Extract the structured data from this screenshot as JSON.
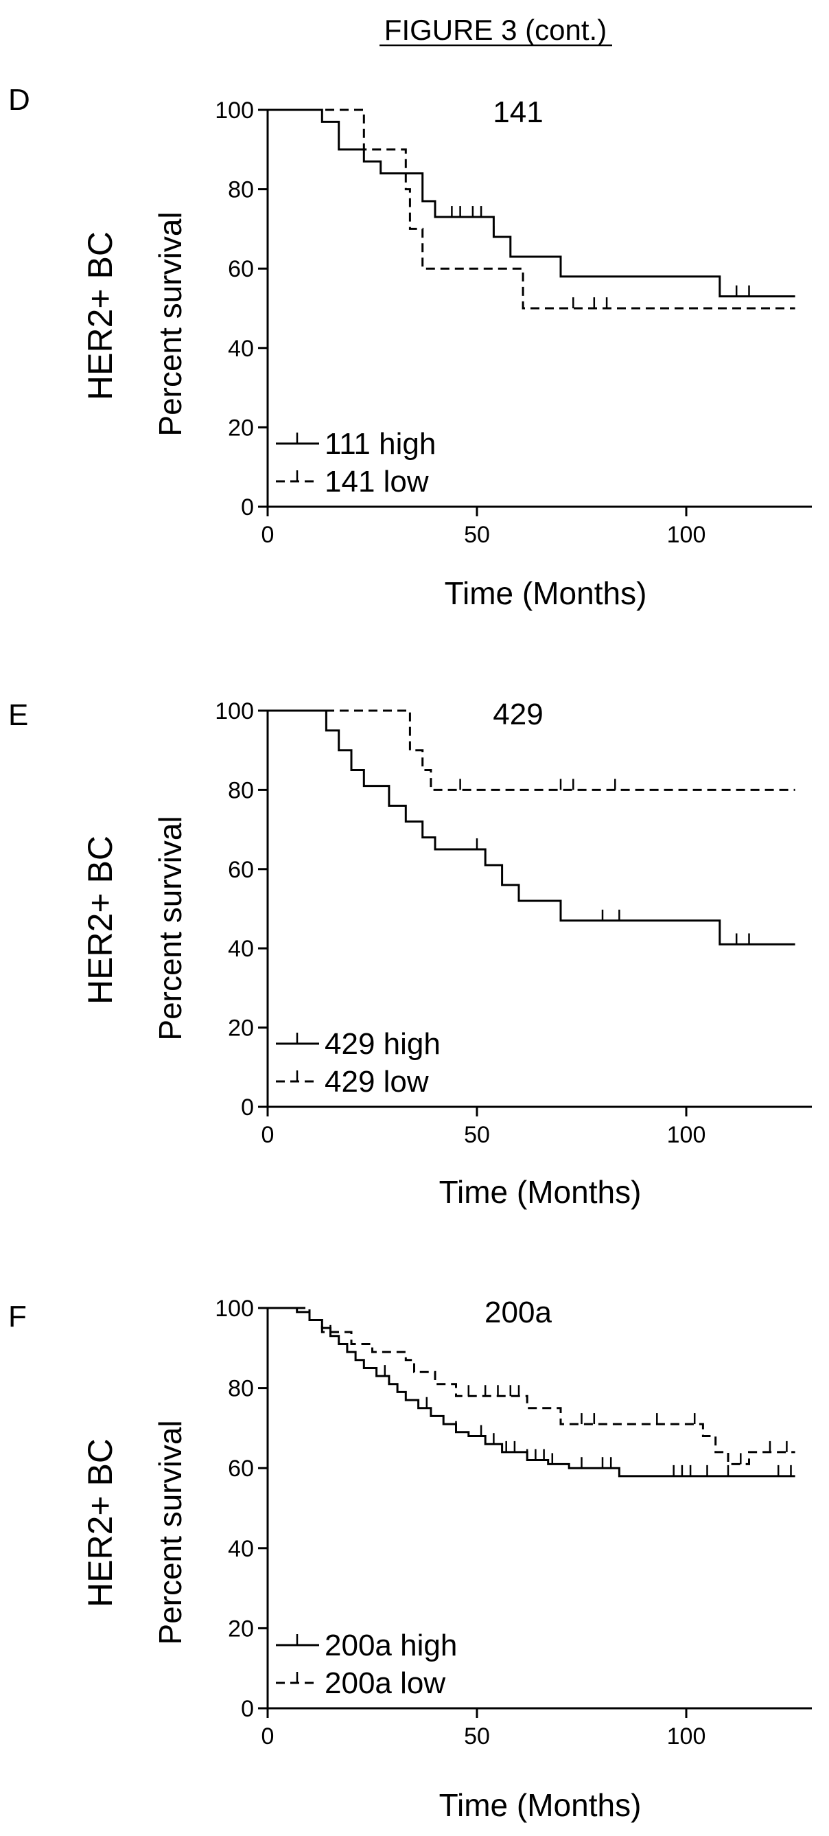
{
  "figure_title": "FIGURE 3 (cont.)",
  "chart_data": [
    {
      "type": "line",
      "panel": "D",
      "title": "141",
      "group_label": "HER2+ BC",
      "ylabel": "Percent survival",
      "xlabel": "Time (Months)",
      "xlim": [
        0,
        130
      ],
      "ylim": [
        0,
        100
      ],
      "x_ticks": [
        0,
        50,
        100
      ],
      "y_ticks": [
        0,
        20,
        40,
        60,
        80,
        100
      ],
      "grid": false,
      "legend_position": "bottom-left",
      "series": [
        {
          "name": "111 high",
          "style": "solid",
          "steps": [
            [
              0,
              100
            ],
            [
              13,
              97
            ],
            [
              17,
              90
            ],
            [
              23,
              87
            ],
            [
              27,
              84
            ],
            [
              37,
              77
            ],
            [
              40,
              73
            ],
            [
              54,
              68
            ],
            [
              58,
              63
            ],
            [
              70,
              58
            ],
            [
              108,
              53
            ],
            [
              126,
              53
            ]
          ],
          "censor": [
            44,
            46,
            49,
            51,
            54,
            112,
            115
          ]
        },
        {
          "name": "141 low",
          "style": "dashed",
          "steps": [
            [
              0,
              100
            ],
            [
              23,
              90
            ],
            [
              33,
              80
            ],
            [
              34,
              70
            ],
            [
              37,
              60
            ],
            [
              61,
              50
            ],
            [
              126,
              50
            ]
          ],
          "censor": [
            73,
            78,
            81
          ]
        }
      ]
    },
    {
      "type": "line",
      "panel": "E",
      "title": "429",
      "group_label": "HER2+ BC",
      "ylabel": "Percent survival",
      "xlabel": "Time (Months)",
      "xlim": [
        0,
        130
      ],
      "ylim": [
        0,
        100
      ],
      "x_ticks": [
        0,
        50,
        100
      ],
      "y_ticks": [
        0,
        20,
        40,
        60,
        80,
        100
      ],
      "grid": false,
      "legend_position": "bottom-left",
      "series": [
        {
          "name": "429 high",
          "style": "solid",
          "steps": [
            [
              0,
              100
            ],
            [
              14,
              95
            ],
            [
              17,
              90
            ],
            [
              20,
              85
            ],
            [
              23,
              81
            ],
            [
              29,
              76
            ],
            [
              33,
              72
            ],
            [
              37,
              68
            ],
            [
              40,
              65
            ],
            [
              52,
              61
            ],
            [
              56,
              56
            ],
            [
              60,
              52
            ],
            [
              70,
              47
            ],
            [
              108,
              41
            ],
            [
              126,
              41
            ]
          ],
          "censor": [
            50,
            52,
            80,
            84,
            112,
            115
          ]
        },
        {
          "name": "429 low",
          "style": "dashed",
          "steps": [
            [
              0,
              100
            ],
            [
              34,
              90
            ],
            [
              37,
              85
            ],
            [
              39,
              80
            ],
            [
              126,
              80
            ]
          ],
          "censor": [
            46,
            70,
            73,
            83
          ]
        }
      ]
    },
    {
      "type": "line",
      "panel": "F",
      "title": "200a",
      "group_label": "HER2+ BC",
      "ylabel": "Percent survival",
      "xlabel": "Time (Months)",
      "xlim": [
        0,
        130
      ],
      "ylim": [
        0,
        100
      ],
      "x_ticks": [
        0,
        50,
        100
      ],
      "y_ticks": [
        0,
        20,
        40,
        60,
        80,
        100
      ],
      "grid": false,
      "legend_position": "bottom-left",
      "series": [
        {
          "name": "200a high",
          "style": "solid",
          "steps": [
            [
              0,
              100
            ],
            [
              7,
              99
            ],
            [
              10,
              97
            ],
            [
              13,
              95
            ],
            [
              15,
              93
            ],
            [
              17,
              91
            ],
            [
              19,
              89
            ],
            [
              21,
              87
            ],
            [
              23,
              85
            ],
            [
              26,
              83
            ],
            [
              29,
              81
            ],
            [
              31,
              79
            ],
            [
              33,
              77
            ],
            [
              36,
              75
            ],
            [
              39,
              73
            ],
            [
              42,
              71
            ],
            [
              45,
              69
            ],
            [
              48,
              68
            ],
            [
              52,
              66
            ],
            [
              56,
              64
            ],
            [
              62,
              62
            ],
            [
              67,
              61
            ],
            [
              72,
              60
            ],
            [
              84,
              58
            ],
            [
              126,
              58
            ]
          ],
          "censor": [
            15,
            28,
            38,
            45,
            51,
            54,
            57,
            59,
            62,
            64,
            66,
            68,
            75,
            80,
            82,
            97,
            99,
            101,
            105,
            110,
            122,
            125
          ]
        },
        {
          "name": "200a low",
          "style": "dashed",
          "steps": [
            [
              0,
              100
            ],
            [
              10,
              97
            ],
            [
              13,
              94
            ],
            [
              20,
              91
            ],
            [
              25,
              89
            ],
            [
              33,
              87
            ],
            [
              35,
              84
            ],
            [
              40,
              81
            ],
            [
              45,
              78
            ],
            [
              62,
              75
            ],
            [
              70,
              71
            ],
            [
              104,
              68
            ],
            [
              107,
              64
            ],
            [
              110,
              61
            ],
            [
              115,
              64
            ],
            [
              126,
              64
            ]
          ],
          "censor": [
            48,
            52,
            55,
            58,
            60,
            75,
            78,
            93,
            102,
            113,
            120,
            124
          ]
        }
      ]
    }
  ]
}
